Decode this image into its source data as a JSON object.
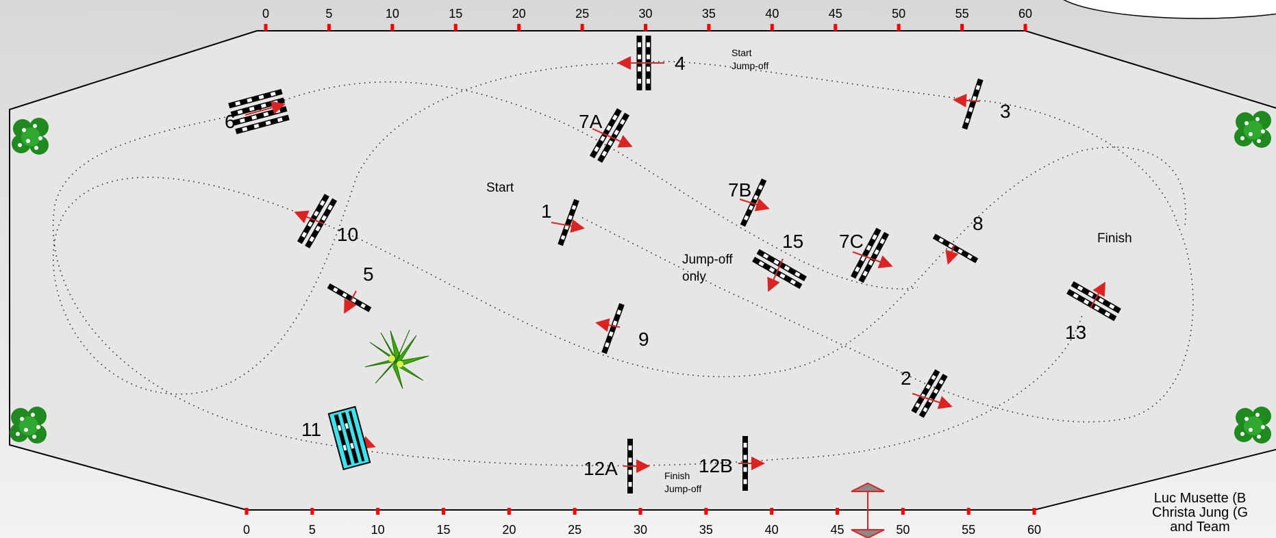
{
  "top_scale": [
    "0",
    "5",
    "10",
    "15",
    "20",
    "25",
    "30",
    "35",
    "40",
    "45",
    "50",
    "55",
    "60"
  ],
  "bottom_scale": [
    "0",
    "5",
    "10",
    "15",
    "20",
    "25",
    "30",
    "35",
    "40",
    "45",
    "50",
    "55",
    "60"
  ],
  "fences": [
    {
      "label": "1"
    },
    {
      "label": "2"
    },
    {
      "label": "3"
    },
    {
      "label": "4"
    },
    {
      "label": "5"
    },
    {
      "label": "6"
    },
    {
      "label": "7A"
    },
    {
      "label": "7B"
    },
    {
      "label": "7C"
    },
    {
      "label": "8"
    },
    {
      "label": "9"
    },
    {
      "label": "10"
    },
    {
      "label": "11"
    },
    {
      "label": "12A"
    },
    {
      "label": "12B"
    },
    {
      "label": "13"
    },
    {
      "label": "15"
    }
  ],
  "annotations": {
    "start": "Start",
    "finish": "Finish",
    "jumpoff_only_line1": "Jump-off",
    "jumpoff_only_line2": "only",
    "start_jumpoff_line1": "Start",
    "start_jumpoff_line2": "Jump-off",
    "finish_jumpoff_line1": "Finish",
    "finish_jumpoff_line2": "Jump-off"
  },
  "credits": {
    "line1": "Luc Musette (B",
    "line2": "Christa Jung (G",
    "line3": "and Team"
  },
  "colors": {
    "arena_fill": "#e6e6e6",
    "arena_stroke": "#000000",
    "tick_red": "#ff0000",
    "arrow_red": "#dd2222",
    "water_jump": "#33e6f0",
    "bush_green": "#1f8a1f",
    "palm_green": "#3cb000",
    "gate_gray": "#888888"
  }
}
